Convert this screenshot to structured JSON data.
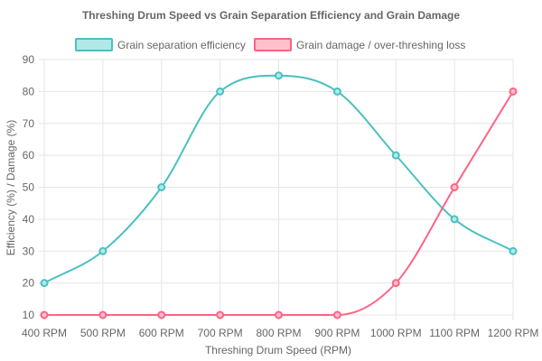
{
  "chart_data": {
    "type": "line",
    "title": "Threshing Drum Speed vs Grain Separation Efficiency and Grain Damage",
    "xlabel": "Threshing Drum Speed (RPM)",
    "ylabel": "Efficiency (%) / Damage (%)",
    "categories": [
      "400 RPM",
      "500 RPM",
      "600 RPM",
      "700 RPM",
      "800 RPM",
      "900 RPM",
      "1000 RPM",
      "1100 RPM",
      "1200 RPM"
    ],
    "ylim": [
      10,
      90
    ],
    "yticks": [
      10,
      20,
      30,
      40,
      50,
      60,
      70,
      80,
      90
    ],
    "grid": true,
    "legend_position": "top",
    "series": [
      {
        "name": "Grain separation efficiency",
        "values": [
          20,
          30,
          50,
          80,
          85,
          80,
          60,
          40,
          30
        ],
        "color": "#4bc0c0",
        "fill": "#b3e8e8"
      },
      {
        "name": "Grain damage / over-threshing loss",
        "values": [
          10,
          10,
          10,
          10,
          10,
          10,
          20,
          50,
          80
        ],
        "color": "#ff6384",
        "fill": "#ffc0cc"
      }
    ]
  }
}
